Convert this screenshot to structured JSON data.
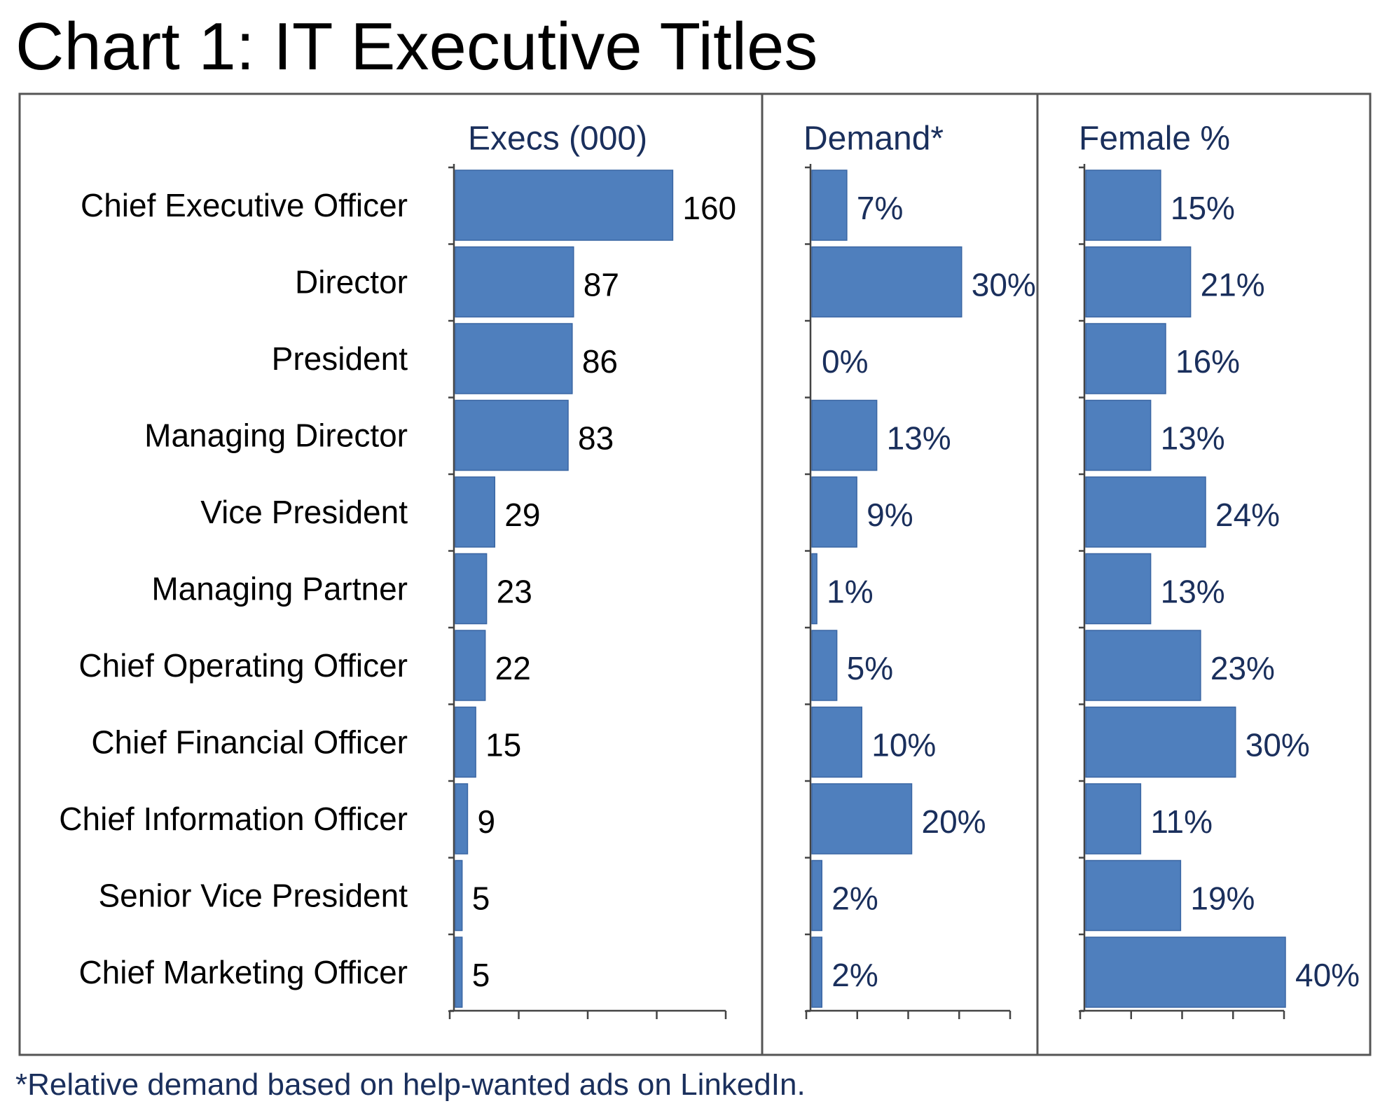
{
  "chart_data": {
    "type": "bar",
    "title": "Chart 1: IT Executive Titles",
    "footnote": "*Relative demand based on help-wanted ads on LinkedIn.",
    "categories": [
      "Chief Executive Officer",
      "Director",
      "President",
      "Managing Director",
      "Vice President",
      "Managing Partner",
      "Chief Operating Officer",
      "Chief Financial Officer",
      "Chief Information Officer",
      "Senior Vice President",
      "Chief Marketing Officer"
    ],
    "series": [
      {
        "name": "Execs (000)",
        "values": [
          160,
          87,
          86,
          83,
          29,
          23,
          22,
          15,
          9,
          5,
          5
        ],
        "labels": [
          "160",
          "87",
          "86",
          "83",
          "29",
          "23",
          "22",
          "15",
          "9",
          "5",
          "5"
        ],
        "xlim": [
          0,
          200
        ],
        "ticks": 4
      },
      {
        "name": "Demand*",
        "values": [
          7,
          30,
          0,
          13,
          9,
          1,
          5,
          10,
          20,
          2,
          2
        ],
        "labels": [
          "7%",
          "30%",
          "0%",
          "13%",
          "9%",
          "1%",
          "5%",
          "10%",
          "20%",
          "2%",
          "2%"
        ],
        "xlim": [
          0,
          40
        ],
        "ticks": 4
      },
      {
        "name": "Female %",
        "values": [
          15,
          21,
          16,
          13,
          24,
          13,
          23,
          30,
          11,
          19,
          40
        ],
        "labels": [
          "15%",
          "21%",
          "16%",
          "13%",
          "24%",
          "13%",
          "23%",
          "30%",
          "11%",
          "19%",
          "40%"
        ],
        "xlim": [
          0,
          40
        ],
        "ticks": 4
      }
    ],
    "colors": {
      "bar": "#4f7fbd",
      "bar_edge": "#3a66a3",
      "header_text": "#1a2f5c",
      "category_text": "#000000",
      "value_text_first": "#000000",
      "value_text_pct": "#1a2f5c",
      "frame": "#555555"
    }
  }
}
